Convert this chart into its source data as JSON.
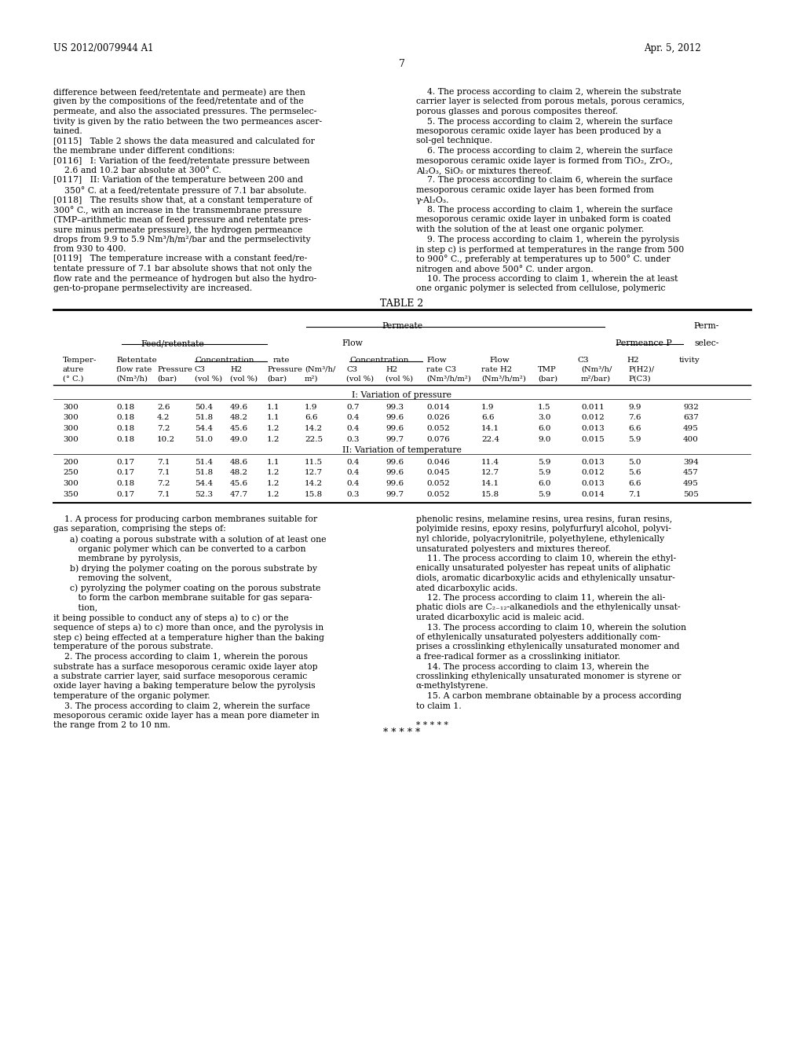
{
  "page_number": "7",
  "patent_number": "US 2012/0079944 A1",
  "patent_date": "Apr. 5, 2012",
  "background_color": "#ffffff",
  "text_color": "#000000",
  "left_column_top": [
    "difference between feed/retentate and permeate) are then",
    "given by the compositions of the feed/retentate and of the",
    "permeate, and also the associated pressures. The permselec-",
    "tivity is given by the ratio between the two permeances ascer-",
    "tained.",
    "[0115]   Table 2 shows the data measured and calculated for",
    "the membrane under different conditions:",
    "[0116]   I: Variation of the feed/retentate pressure between",
    "    2.6 and 10.2 bar absolute at 300° C.",
    "[0117]   II: Variation of the temperature between 200 and",
    "    350° C. at a feed/retentate pressure of 7.1 bar absolute.",
    "[0118]   The results show that, at a constant temperature of",
    "300° C., with an increase in the transmembrane pressure",
    "(TMP–arithmetic mean of feed pressure and retentate pres-",
    "sure minus permeate pressure), the hydrogen permeance",
    "drops from 9.9 to 5.9 Nm³/h/m²/bar and the permselectivity",
    "from 930 to 400.",
    "[0119]   The temperature increase with a constant feed/re-",
    "tentate pressure of 7.1 bar absolute shows that not only the",
    "flow rate and the permeance of hydrogen but also the hydro-",
    "gen-to-propane permselectivity are increased."
  ],
  "right_column_top": [
    "    4. The process according to claim 2, wherein the substrate",
    "carrier layer is selected from porous metals, porous ceramics,",
    "porous glasses and porous composites thereof.",
    "    5. The process according to claim 2, wherein the surface",
    "mesoporous ceramic oxide layer has been produced by a",
    "sol-gel technique.",
    "    6. The process according to claim 2, wherein the surface",
    "mesoporous ceramic oxide layer is formed from TiO₂, ZrO₂,",
    "Al₂O₃, SiO₂ or mixtures thereof.",
    "    7. The process according to claim 6, wherein the surface",
    "mesoporous ceramic oxide layer has been formed from",
    "γ-Al₂O₃.",
    "    8. The process according to claim 1, wherein the surface",
    "mesoporous ceramic oxide layer in unbaked form is coated",
    "with the solution of the at least one organic polymer.",
    "    9. The process according to claim 1, wherein the pyrolysis",
    "in step c) is performed at temperatures in the range from 500",
    "to 900° C., preferably at temperatures up to 500° C. under",
    "nitrogen and above 500° C. under argon.",
    "    10. The process according to claim 1, wherein the at least",
    "one organic polymer is selected from cellulose, polymeric"
  ],
  "table_title": "TABLE 2",
  "table_header_row1": [
    "",
    "",
    "Permeate",
    "",
    "Perm-"
  ],
  "table_header_row2": [
    "Feed/retentate",
    "",
    "Flow",
    "",
    "Permeance P",
    "selec-"
  ],
  "table_header_row3": [
    "Temper-",
    "Retentate",
    "",
    "Concentration",
    "",
    "rate",
    "Concentration",
    "Flow",
    "Flow",
    "",
    "C3",
    "H2",
    "tivity"
  ],
  "table_header_row4": [
    "ature",
    "flow rate",
    "Pressure",
    "C3",
    "H2",
    "Pressure",
    "(Nm³/h/",
    "C3",
    "H2",
    "rate C3",
    "rate H2",
    "TMP",
    "(Nm³/h/",
    "P(H2)/"
  ],
  "table_header_row5": [
    "(° C.)",
    "(Nm³/h)",
    "(bar)",
    "(vol %)",
    "(vol %)",
    "(bar)",
    "m²)",
    "(vol %)",
    "(vol %)",
    "(Nm³/h/m²)",
    "(Nm³/h/m²)",
    "(bar)",
    "m²/bar)",
    "P(C3)"
  ],
  "section1_label": "I: Variation of pressure",
  "section1_data": [
    [
      "300",
      "0.18",
      "2.6",
      "50.4",
      "49.6",
      "1.1",
      "1.9",
      "0.7",
      "99.3",
      "0.014",
      "1.9",
      "1.5",
      "0.011",
      "9.9",
      "932"
    ],
    [
      "300",
      "0.18",
      "4.2",
      "51.8",
      "48.2",
      "1.1",
      "6.6",
      "0.4",
      "99.6",
      "0.026",
      "6.6",
      "3.0",
      "0.012",
      "7.6",
      "637"
    ],
    [
      "300",
      "0.18",
      "7.2",
      "54.4",
      "45.6",
      "1.2",
      "14.2",
      "0.4",
      "99.6",
      "0.052",
      "14.1",
      "6.0",
      "0.013",
      "6.6",
      "495"
    ],
    [
      "300",
      "0.18",
      "10.2",
      "51.0",
      "49.0",
      "1.2",
      "22.5",
      "0.3",
      "99.7",
      "0.076",
      "22.4",
      "9.0",
      "0.015",
      "5.9",
      "400"
    ]
  ],
  "section2_label": "II: Variation of temperature",
  "section2_data": [
    [
      "200",
      "0.17",
      "7.1",
      "51.4",
      "48.6",
      "1.1",
      "11.5",
      "0.4",
      "99.6",
      "0.046",
      "11.4",
      "5.9",
      "0.013",
      "5.0",
      "394"
    ],
    [
      "250",
      "0.17",
      "7.1",
      "51.8",
      "48.2",
      "1.2",
      "12.7",
      "0.4",
      "99.6",
      "0.045",
      "12.7",
      "5.9",
      "0.012",
      "5.6",
      "457"
    ],
    [
      "300",
      "0.18",
      "7.2",
      "54.4",
      "45.6",
      "1.2",
      "14.2",
      "0.4",
      "99.6",
      "0.052",
      "14.1",
      "6.0",
      "0.013",
      "6.6",
      "495"
    ],
    [
      "350",
      "0.17",
      "7.1",
      "52.3",
      "47.7",
      "1.2",
      "15.8",
      "0.3",
      "99.7",
      "0.052",
      "15.8",
      "5.9",
      "0.014",
      "7.1",
      "505"
    ]
  ],
  "left_column_bottom": [
    "    1. A process for producing carbon membranes suitable for",
    "gas separation, comprising the steps of:",
    "      a) coating a porous substrate with a solution of at least one",
    "         organic polymer which can be converted to a carbon",
    "         membrane by pyrolysis,",
    "      b) drying the polymer coating on the porous substrate by",
    "         removing the solvent,",
    "      c) pyrolyzing the polymer coating on the porous substrate",
    "         to form the carbon membrane suitable for gas separa-",
    "         tion,",
    "it being possible to conduct any of steps a) to c) or the",
    "sequence of steps a) to c) more than once, and the pyrolysis in",
    "step c) being effected at a temperature higher than the baking",
    "temperature of the porous substrate.",
    "    2. The process according to claim 1, wherein the porous",
    "substrate has a surface mesoporous ceramic oxide layer atop",
    "a substrate carrier layer, said surface mesoporous ceramic",
    "oxide layer having a baking temperature below the pyrolysis",
    "temperature of the organic polymer.",
    "    3. The process according to claim 2, wherein the surface",
    "mesoporous ceramic oxide layer has a mean pore diameter in",
    "the range from 2 to 10 nm."
  ],
  "right_column_bottom": [
    "phenolic resins, melamine resins, urea resins, furan resins,",
    "polyimide resins, epoxy resins, polyfurfuryl alcohol, polyvi-",
    "nyl chloride, polyacrylonitrile, polyethylene, ethylenically",
    "unsaturated polyesters and mixtures thereof.",
    "    11. The process according to claim 10, wherein the ethyl-",
    "enically unsaturated polyester has repeat units of aliphatic",
    "diols, aromatic dicarboxylic acids and ethylenically unsatur-",
    "ated dicarboxylic acids.",
    "    12. The process according to claim 11, wherein the ali-",
    "phatic diols are C₂₋₁₂-alkanediols and the ethylenically unsat-",
    "urated dicarboxylic acid is maleic acid.",
    "    13. The process according to claim 10, wherein the solution",
    "of ethylenically unsaturated polyesters additionally com-",
    "prises a crosslinking ethylenically unsaturated monomer and",
    "a free-radical former as a crosslinking initiator.",
    "    14. The process according to claim 13, wherein the",
    "crosslinking ethylenically unsaturated monomer is styrene or",
    "α-methylstyrene.",
    "    15. A carbon membrane obtainable by a process according",
    "to claim 1.",
    "",
    "* * * * *"
  ]
}
